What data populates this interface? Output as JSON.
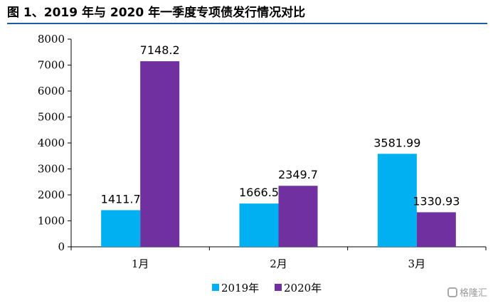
{
  "title": "图 1、2019 年与 2020 年一季度专项债发行情况对比",
  "watermark": "格隆汇",
  "chart_data": {
    "type": "bar",
    "categories": [
      "1月",
      "2月",
      "3月"
    ],
    "series": [
      {
        "name": "2019年",
        "values": [
          1411.7,
          1666.5,
          3581.99
        ],
        "labels": [
          "1411.7",
          "1666.5",
          "3581.99"
        ],
        "color": "#00b0f0"
      },
      {
        "name": "2020年",
        "values": [
          7148.2,
          2349.7,
          1330.93
        ],
        "labels": [
          "7148.2",
          "2349.7",
          "1330.93"
        ],
        "color": "#7030a0"
      }
    ],
    "ylim": [
      0,
      8000
    ],
    "yticks": [
      0,
      1000,
      2000,
      3000,
      4000,
      5000,
      6000,
      7000,
      8000
    ],
    "legend": "bottom-center",
    "grid": false
  }
}
